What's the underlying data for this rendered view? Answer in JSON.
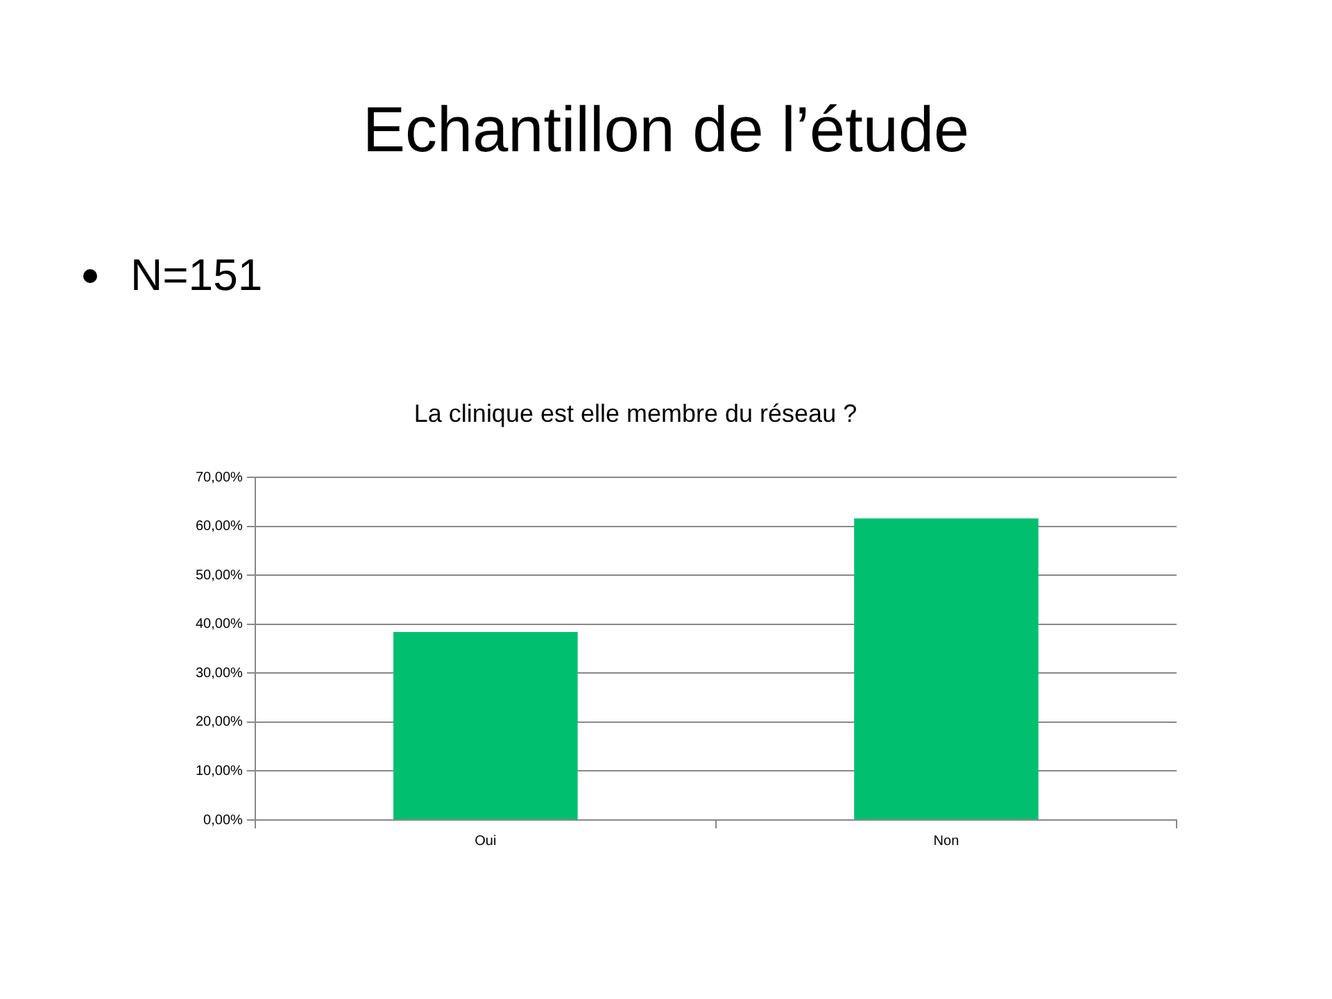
{
  "chart_data": {
    "type": "bar",
    "title": "Echantillon de l’étude",
    "subtitle": "N=151",
    "annotations": [
      "La clinique est elle membre du réseau ?"
    ],
    "categories": [
      "Oui",
      "Non"
    ],
    "values": [
      38.4,
      61.6
    ],
    "color": "#00c070",
    "ylim": [
      0,
      70
    ],
    "yticks": [
      {
        "value": 0,
        "label": "0,00%"
      },
      {
        "value": 10,
        "label": "10,00%"
      },
      {
        "value": 20,
        "label": "20,00%"
      },
      {
        "value": 30,
        "label": "30,00%"
      },
      {
        "value": 40,
        "label": "40,00%"
      },
      {
        "value": 50,
        "label": "50,00%"
      },
      {
        "value": 60,
        "label": "60,00%"
      },
      {
        "value": 70,
        "label": "70,00%"
      }
    ],
    "grid": "y"
  }
}
